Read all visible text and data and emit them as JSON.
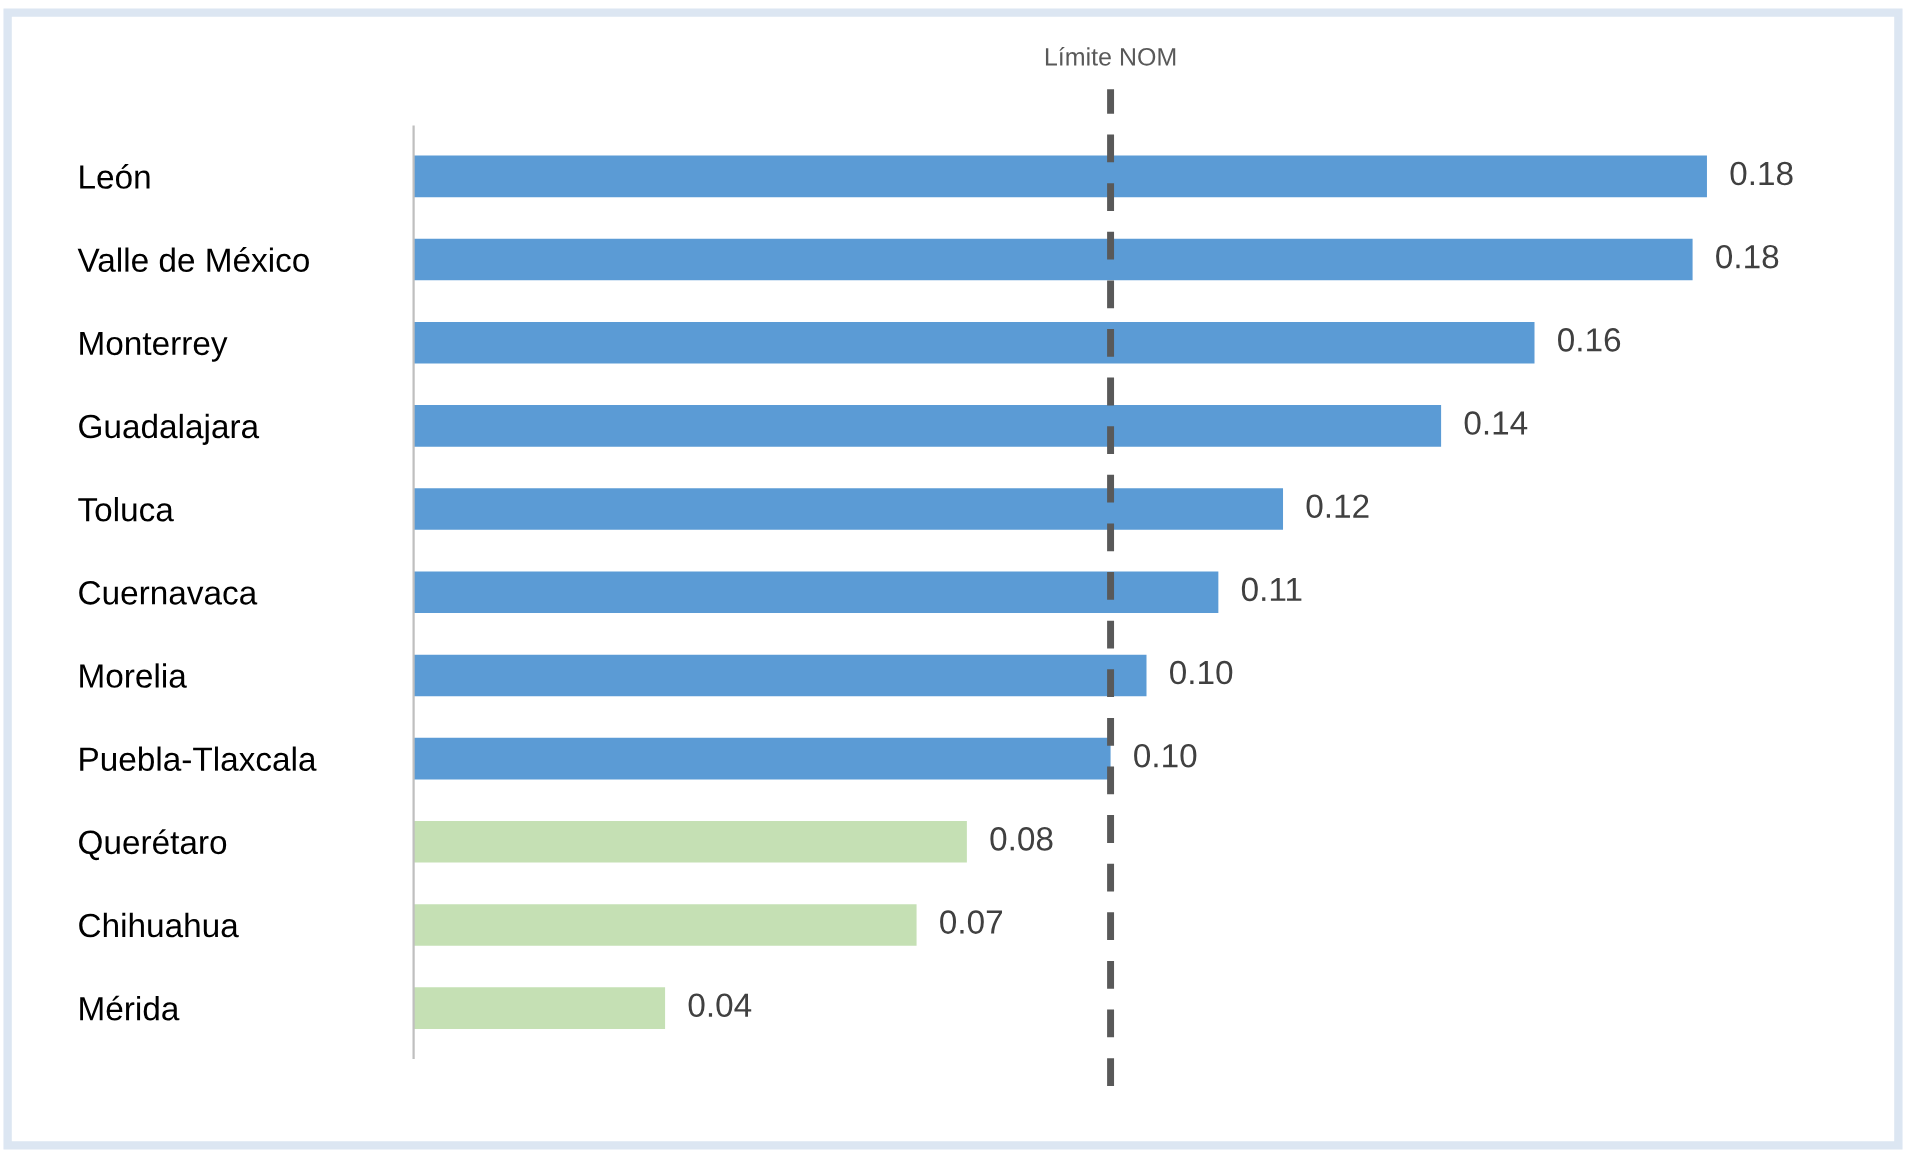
{
  "chart_data": {
    "type": "bar",
    "orientation": "horizontal",
    "categories": [
      "León",
      "Valle de México",
      "Monterrey",
      "Guadalajara",
      "Toluca",
      "Cuernavaca",
      "Morelia",
      "Puebla-Tlaxcala",
      "Querétaro",
      "Chihuahua",
      "Mérida"
    ],
    "values": [
      0.18,
      0.178,
      0.156,
      0.143,
      0.121,
      0.112,
      0.102,
      0.097,
      0.077,
      0.07,
      0.035
    ],
    "value_labels": [
      "0.18",
      "0.18",
      "0.16",
      "0.14",
      "0.12",
      "0.11",
      "0.10",
      "0.10",
      "0.08",
      "0.07",
      "0.04"
    ],
    "colors": [
      "#5b9bd5",
      "#5b9bd5",
      "#5b9bd5",
      "#5b9bd5",
      "#5b9bd5",
      "#5b9bd5",
      "#5b9bd5",
      "#5b9bd5",
      "#c5e0b4",
      "#c5e0b4",
      "#c5e0b4"
    ],
    "ref_lines": [
      {
        "axis": "x",
        "value": 0.097,
        "label": "Límite NOM",
        "color": "#595959",
        "line_style": "dashed"
      }
    ],
    "grid": false,
    "legend": false
  }
}
